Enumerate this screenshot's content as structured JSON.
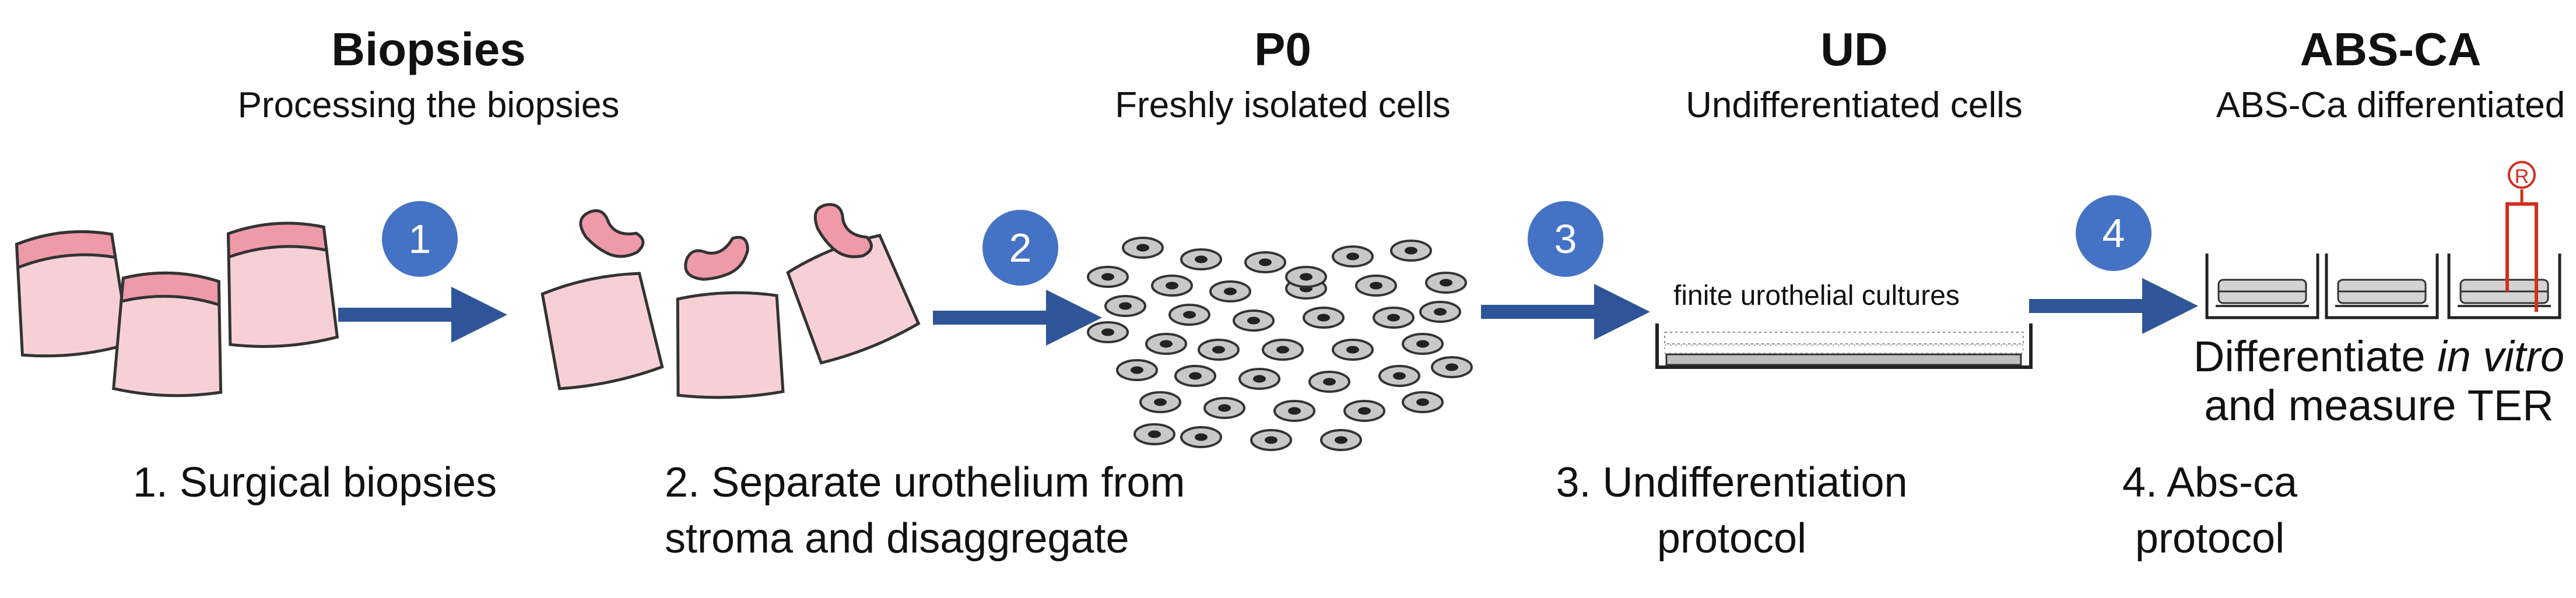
{
  "stages": [
    {
      "title": "Biopsies",
      "subtitle": "Processing the biopsies",
      "step_number": "1",
      "caption_line1": "1. Surgical biopsies",
      "caption_line2": ""
    },
    {
      "title": "P0",
      "subtitle": "Freshly isolated cells",
      "step_number": "2",
      "caption_line1": "2. Separate urothelium from",
      "caption_line2": "stroma and disaggregate"
    },
    {
      "title": "UD",
      "subtitle": "Undifferentiated cells",
      "step_number": "3",
      "caption_line1": "3. Undifferentiation",
      "caption_line2": "protocol"
    },
    {
      "title": "ABS-CA",
      "subtitle": "ABS-Ca differentiated",
      "step_number": "4",
      "caption_line1": "4. Abs-ca",
      "caption_line2": "protocol"
    }
  ],
  "ud_illustration_label": "finite urothelial cultures",
  "abs_illustration": {
    "line1_prefix": "Differentiate ",
    "line1_italic": "in vitro",
    "line2": "and measure TER",
    "electrode_label": "R"
  },
  "colors": {
    "arrow": "#2e5597",
    "badge": "#4472c4",
    "tissue_fill": "#f7d0d6",
    "tissue_top": "#ee9aa8",
    "cell": "#c8c8c8",
    "electrode": "#d0311f"
  }
}
